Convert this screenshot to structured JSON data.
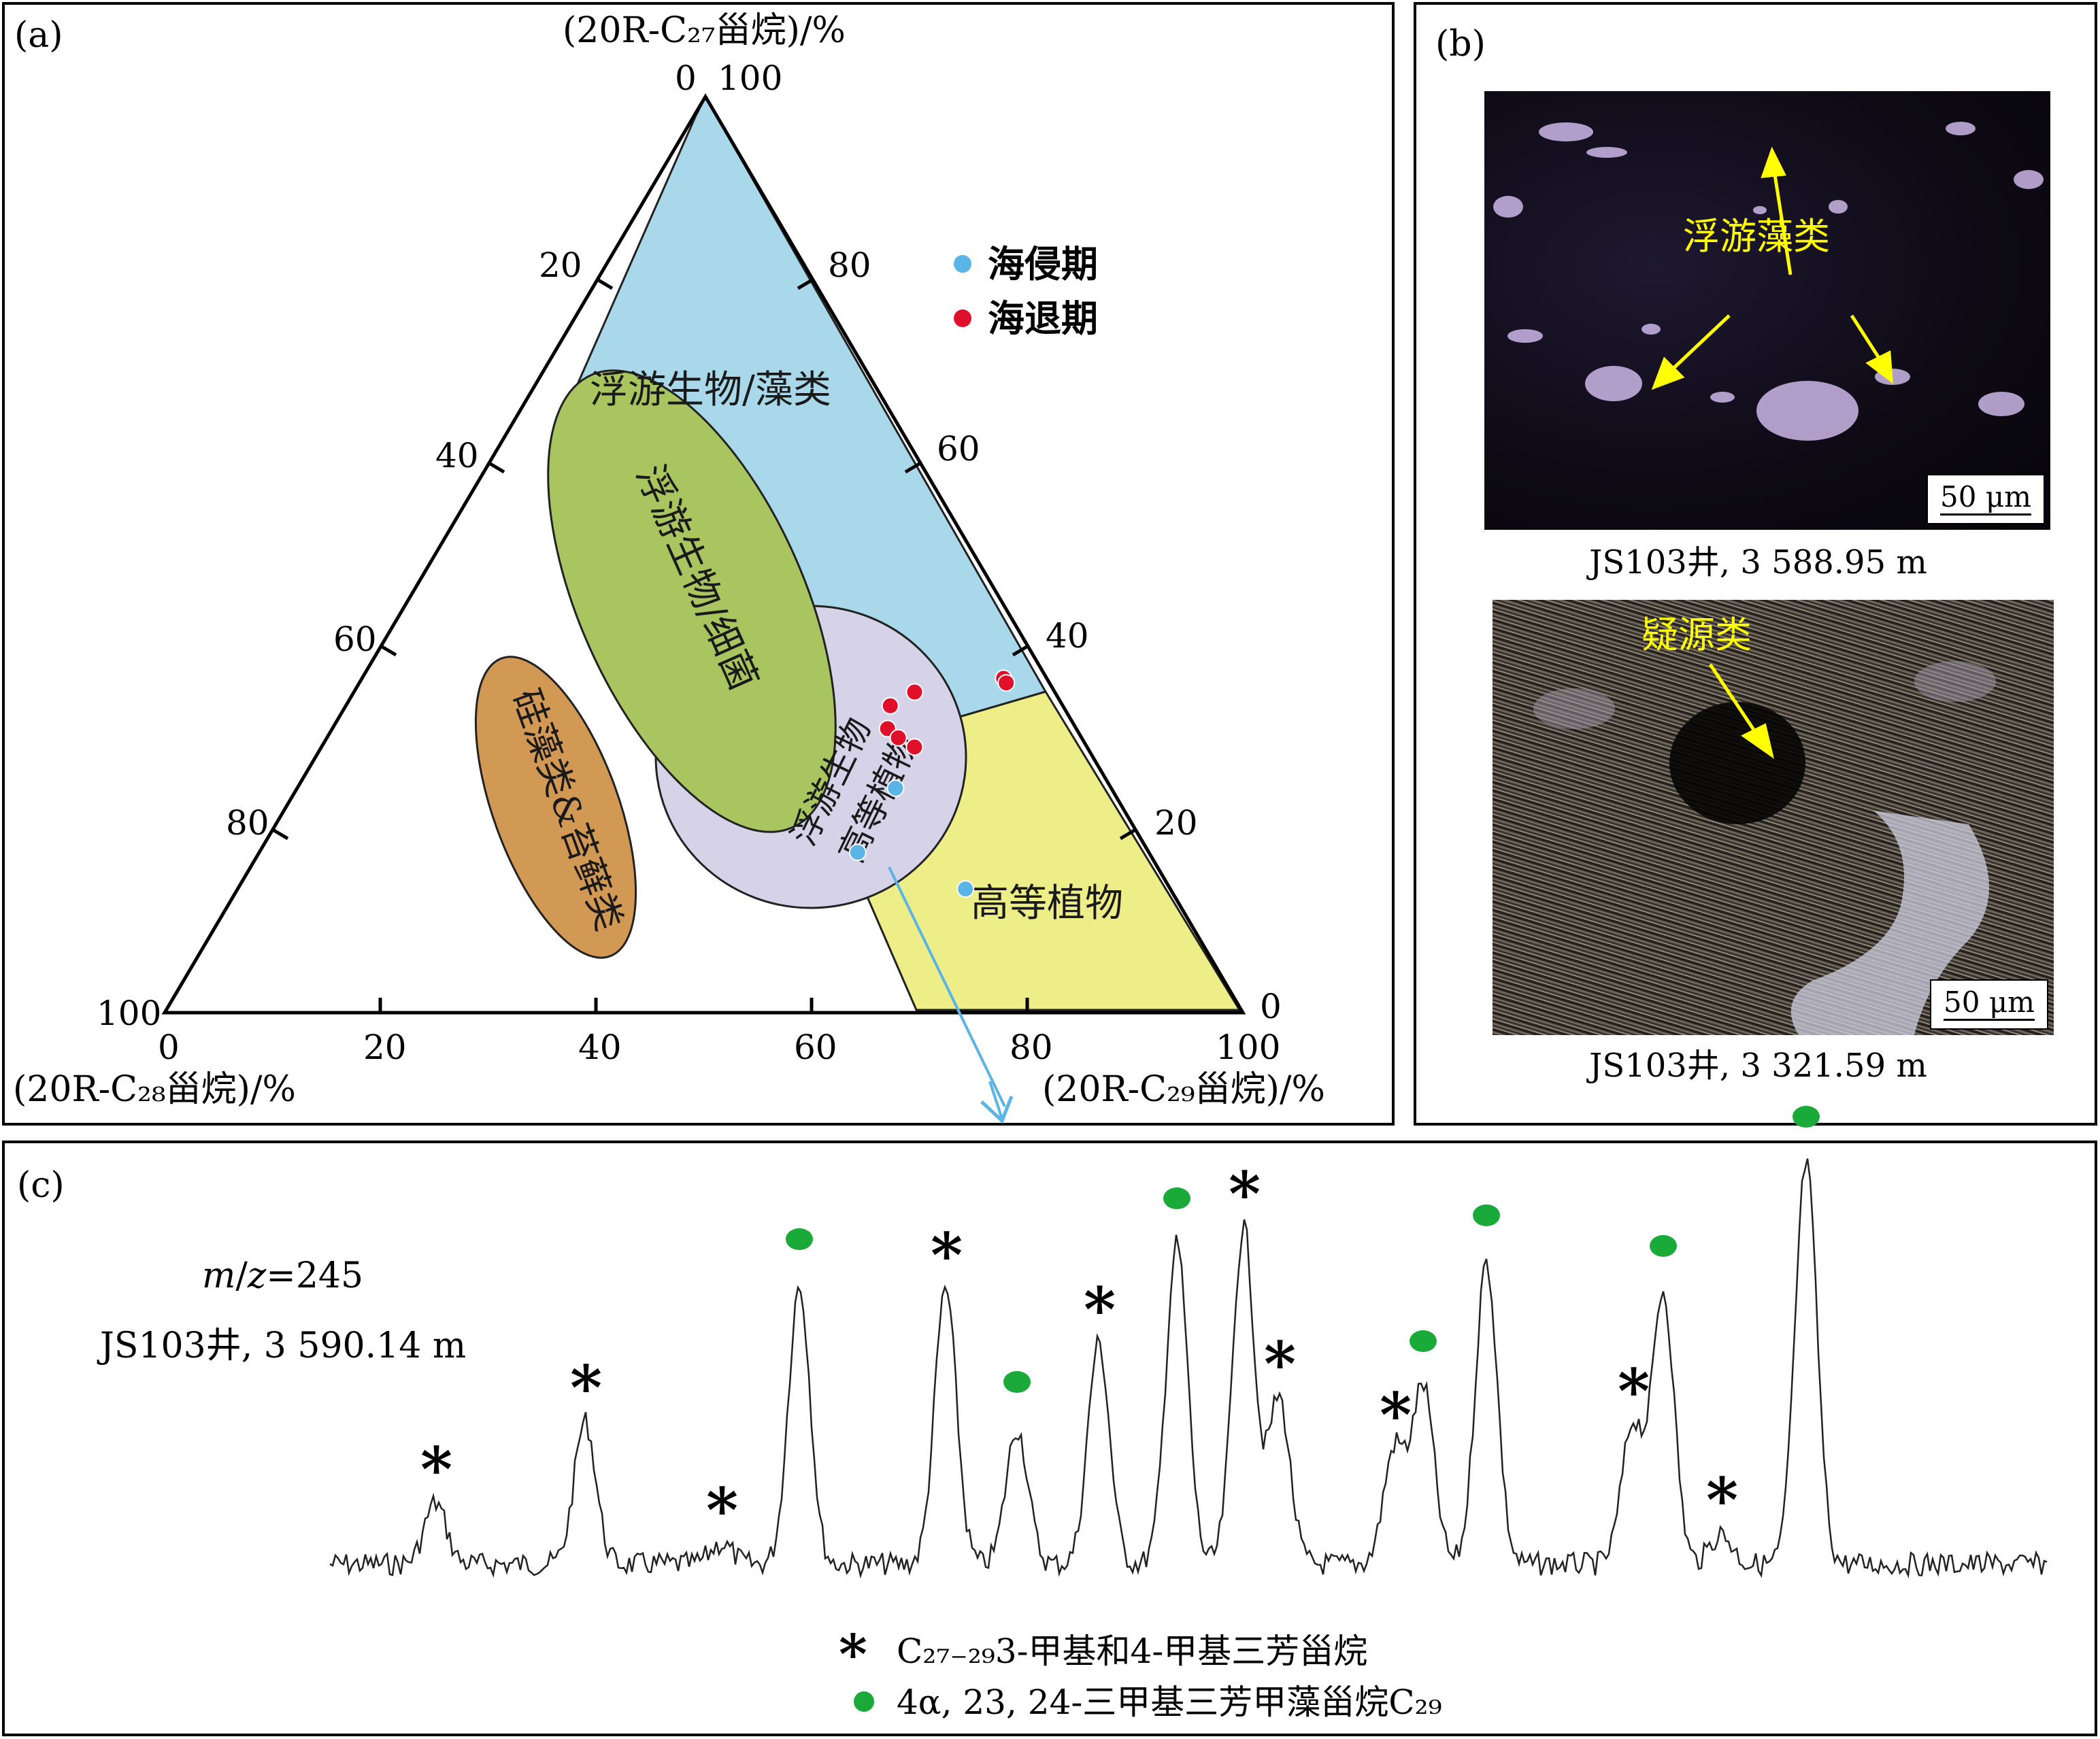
{
  "panel_a": {
    "label": "(a)",
    "axis_top_title": "(20R-C₂₇甾烷)/%",
    "axis_left_title": "(20R-C₂₈甾烷)/%",
    "axis_right_title": "(20R-C₂₉甾烷)/%",
    "apex_top_labels": [
      "0",
      "100"
    ],
    "left_edge_ticks": [
      "20",
      "40",
      "60",
      "80",
      "100"
    ],
    "right_edge_ticks": [
      "80",
      "60",
      "40",
      "20",
      "0"
    ],
    "bottom_ticks": [
      "0",
      "20",
      "40",
      "60",
      "80",
      "100"
    ],
    "regions": {
      "plankton_algae": "浮游生物/藻类",
      "plankton_bacteria": "浮游生物/细菌",
      "plankton_higher_plants": [
        "浮游生物",
        "高等植物"
      ],
      "higher_plants": "高等植物",
      "diatom_moss": "硅藻类&苔藓类"
    },
    "region_colors": {
      "plankton_algae": "#a8d8ea",
      "plankton_bacteria": "#a9c55f",
      "plankton_higher_plants": "#d6d2e8",
      "higher_plants": "#eeee88",
      "diatom_moss": "#d29955"
    },
    "legend": [
      {
        "label": "海侵期",
        "color": "#5ab4e6"
      },
      {
        "label": "海退期",
        "color": "#e0102a"
      }
    ],
    "points": {
      "transgression": [
        [
          55.5,
          24.5
        ],
        [
          55.5,
          17.5
        ],
        [
          67.5,
          13.5
        ]
      ],
      "regression": [
        [
          50.5,
          33.5
        ],
        [
          52,
          35
        ],
        [
          51.5,
          31
        ],
        [
          53,
          30
        ],
        [
          55,
          29
        ],
        [
          59.5,
          36.5
        ],
        [
          60,
          36
        ]
      ]
    }
  },
  "panel_b": {
    "label": "(b)",
    "top_photo": {
      "annotation": "浮游藻类",
      "scale": "50 μm",
      "caption": "JS103井, 3 588.95 m"
    },
    "bottom_photo": {
      "annotation": "疑源类",
      "scale": "50 μm",
      "caption": "JS103井, 3 321.59 m"
    }
  },
  "panel_c": {
    "label": "(c)",
    "mz_m": "m",
    "mz_z": "z",
    "mz_value": "=245",
    "well": "JS103井, 3 590.14 m",
    "legend_star": "C₂₇₋₂₉3-甲基和4-甲基三芳甾烷",
    "legend_dot": "4α, 23, 24-三甲基三芳甲藻甾烷C₂₉",
    "star_peaks": [
      [
        640,
        2210
      ],
      [
        860,
        2090
      ],
      [
        1060,
        2270
      ],
      [
        1390,
        1895
      ],
      [
        1615,
        1975
      ],
      [
        1828,
        1805
      ],
      [
        1880,
        2055
      ],
      [
        2050,
        2130
      ],
      [
        2400,
        2095
      ],
      [
        2530,
        2255
      ]
    ],
    "dot_peaks": [
      [
        1175,
        1890
      ],
      [
        1495,
        2100
      ],
      [
        1730,
        1830
      ],
      [
        2092,
        2040
      ],
      [
        2185,
        1855
      ],
      [
        2445,
        1900
      ],
      [
        2655,
        1710
      ]
    ]
  }
}
